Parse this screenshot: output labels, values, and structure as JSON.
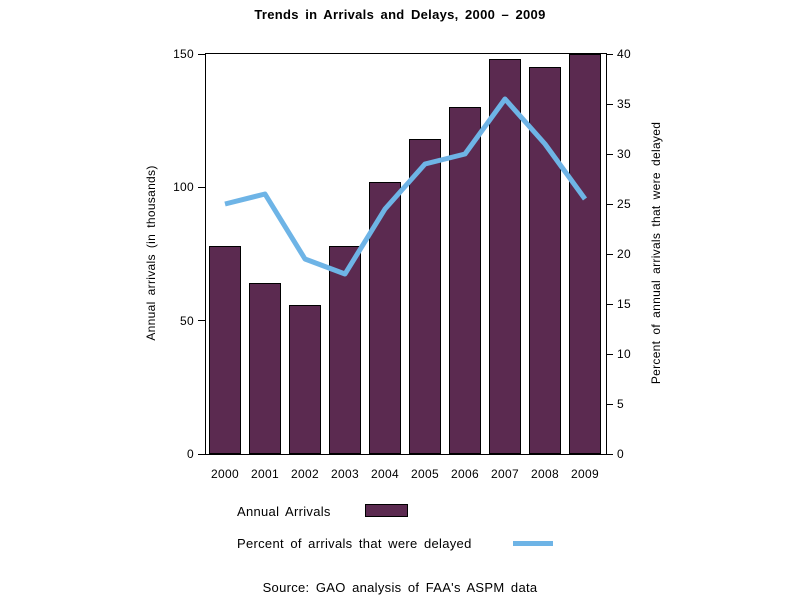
{
  "title": "Trends in Arrivals and Delays, 2000 – 2009",
  "chart_data": {
    "type": "bar",
    "categories": [
      "2000",
      "2001",
      "2002",
      "2003",
      "2004",
      "2005",
      "2006",
      "2007",
      "2008",
      "2009"
    ],
    "series": [
      {
        "name": "Annual Arrivals",
        "type": "bar",
        "axis": "left",
        "color": "#5B2A50",
        "values": [
          78,
          64,
          56,
          78,
          102,
          118,
          130,
          148,
          145,
          150
        ]
      },
      {
        "name": "Percent of arrivals that were delayed",
        "type": "line",
        "axis": "right",
        "color": "#6EB4E6",
        "values": [
          25,
          26,
          19.5,
          18,
          24.5,
          29,
          30,
          35.5,
          31,
          25.5
        ]
      }
    ],
    "left_axis": {
      "label": "Annual arrivals (in thousands)",
      "min": 0,
      "max": 150,
      "ticks": [
        0,
        50,
        100,
        150
      ]
    },
    "right_axis": {
      "label": "Percent of annual arrivals that were delayed",
      "min": 0,
      "max": 40,
      "ticks": [
        0,
        5,
        10,
        15,
        20,
        25,
        30,
        35,
        40
      ]
    },
    "grid": false,
    "legend_position": "bottom-left",
    "frame": true
  },
  "legend": {
    "items": [
      {
        "label": "Annual Arrivals",
        "swatch": "bar"
      },
      {
        "label": "Percent of arrivals that were delayed",
        "swatch": "line"
      }
    ]
  },
  "source": "Source: GAO analysis of FAA's ASPM data"
}
